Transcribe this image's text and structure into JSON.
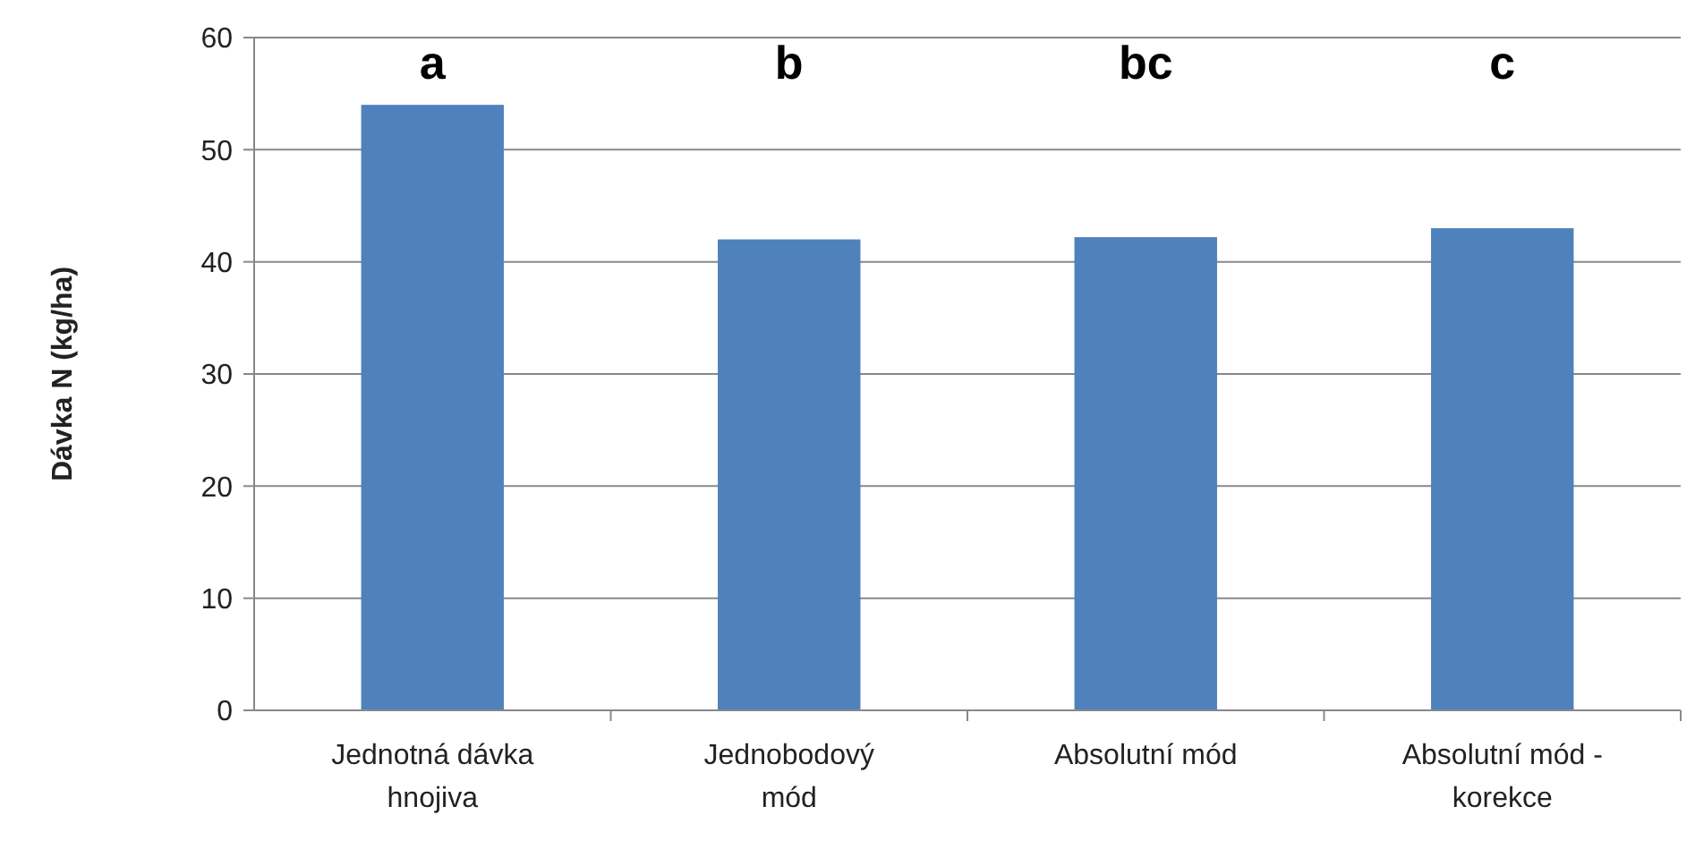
{
  "chart_data": {
    "type": "bar",
    "ylabel": "Dávka N (kg/ha)",
    "categories": [
      "Jednotná dávka\nhnojiva",
      "Jednobodový\nmód",
      "Absolutní mód",
      "Absolutní mód -\nkorekce"
    ],
    "values": [
      54,
      42,
      42.2,
      43
    ],
    "color": "#4f81bd",
    "ylim": [
      0,
      60
    ],
    "yticks": [
      0,
      10,
      20,
      30,
      40,
      50,
      60
    ],
    "grid": "y",
    "annotations": [
      "a",
      "b",
      "bc",
      "c"
    ]
  }
}
